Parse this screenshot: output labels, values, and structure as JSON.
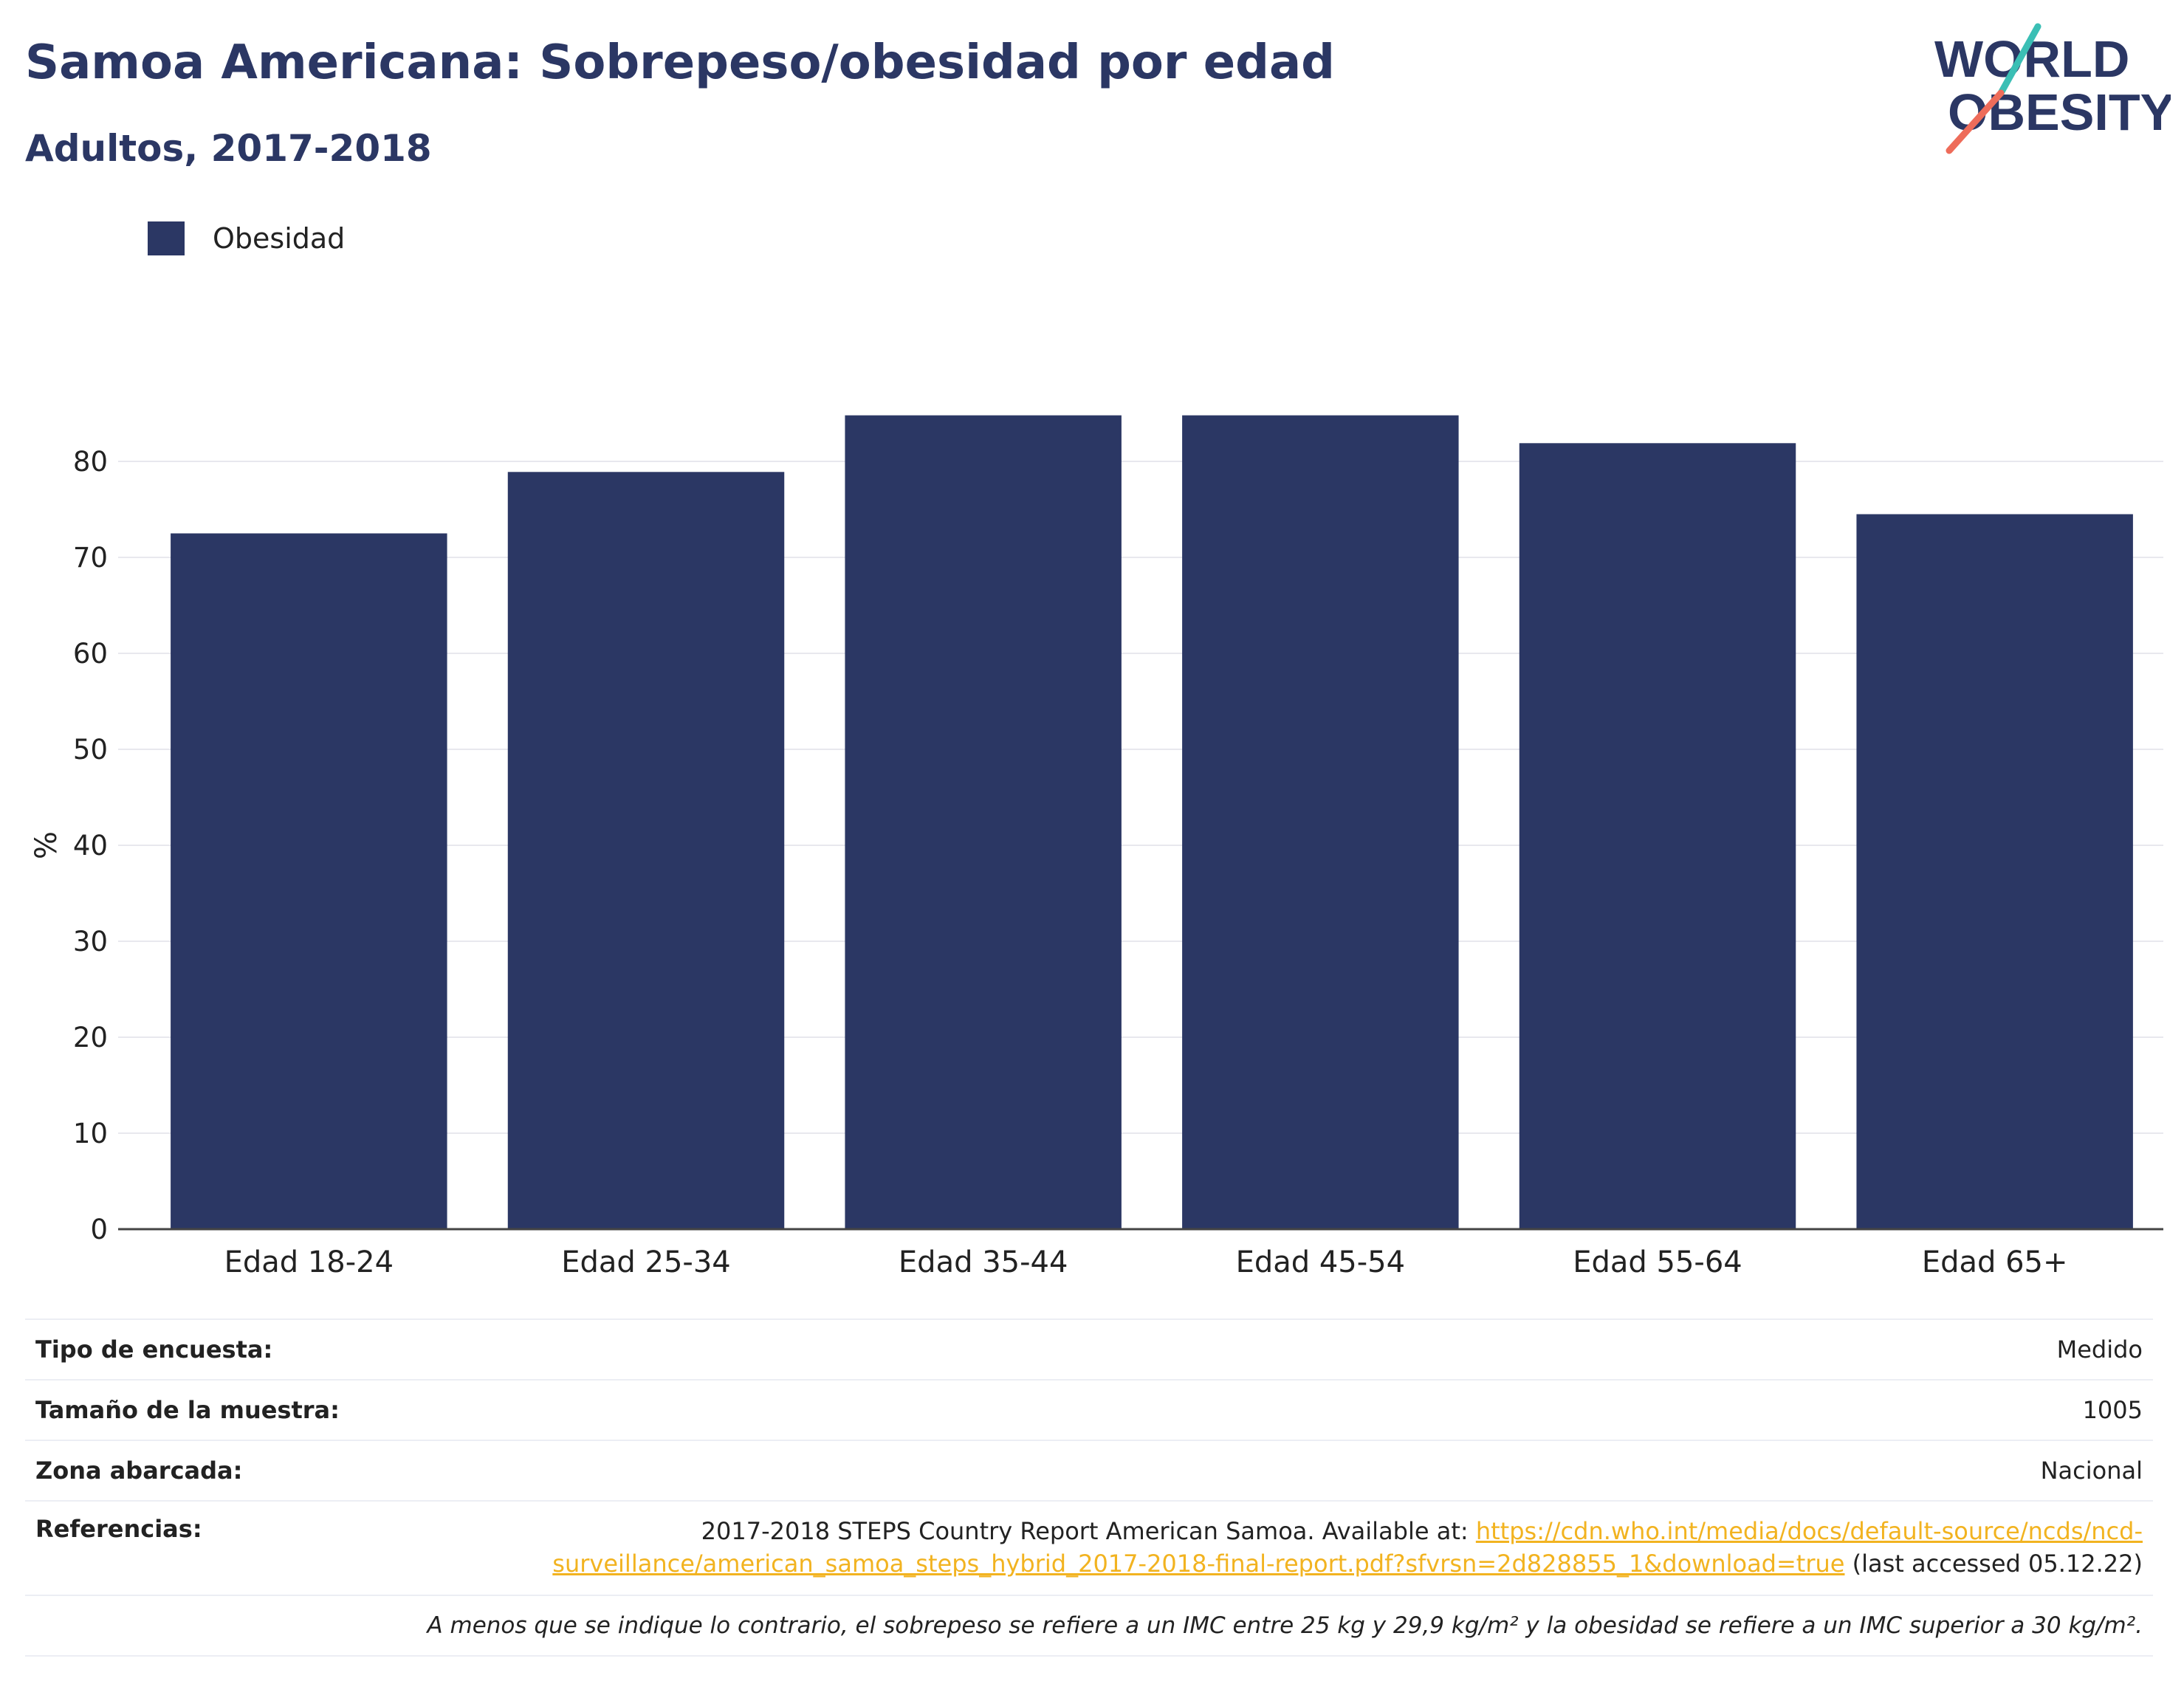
{
  "header": {
    "title": "Samoa Americana: Sobrepeso/obesidad por edad",
    "subtitle": "Adultos, 2017-2018"
  },
  "logo": {
    "line1": "WORLD",
    "line2": "OBESITY",
    "icon": "world-obesity-logo"
  },
  "colors": {
    "bar": "#2b3764",
    "title": "#2b3764",
    "link": "#f2b320",
    "logo_teal": "#3bbfb5",
    "logo_coral": "#ee6c5a",
    "grid": "#e8e8ee"
  },
  "chart_data": {
    "type": "bar",
    "categories": [
      "Edad 18-24",
      "Edad 25-34",
      "Edad 35-44",
      "Edad 45-54",
      "Edad 55-64",
      "Edad 65+"
    ],
    "series": [
      {
        "name": "Obesidad",
        "values": [
          72.5,
          78.9,
          84.8,
          84.8,
          81.9,
          74.5
        ]
      }
    ],
    "ylabel": "%",
    "ylim": [
      0,
      90
    ],
    "yticks": [
      0,
      10,
      20,
      30,
      40,
      50,
      60,
      70,
      80
    ],
    "grid": true,
    "legend_position": "top-left"
  },
  "info": {
    "survey_type_label": "Tipo de encuesta:",
    "survey_type_value": "Medido",
    "sample_size_label": "Tamaño de la muestra:",
    "sample_size_value": "1005",
    "coverage_label": "Zona abarcada:",
    "coverage_value": "Nacional",
    "references_label": "Referencias:",
    "reference_text": "2017-2018 STEPS Country Report American Samoa. Available at: ",
    "reference_link_1": "https://cdn.who.int/media/docs/default-source/ncds/ncd-",
    "reference_link_2": "surveillance/american_samoa_steps_hybrid_2017-2018-final-report.pdf?sfvrsn=2d828855_1&download=true",
    "reference_suffix": " (last accessed 05.12.22)",
    "note": "A menos que se indique lo contrario, el sobrepeso se refiere a un IMC entre 25 kg y 29,9 kg/m² y la obesidad se refiere a un IMC superior a 30 kg/m²."
  }
}
